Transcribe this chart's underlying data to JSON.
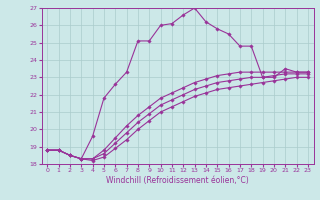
{
  "xlabel": "Windchill (Refroidissement éolien,°C)",
  "bg_color": "#cce8e8",
  "grid_color": "#aacccc",
  "line_color": "#993399",
  "xlim": [
    -0.5,
    23.5
  ],
  "ylim": [
    18,
    27
  ],
  "xticks": [
    0,
    1,
    2,
    3,
    4,
    5,
    6,
    7,
    8,
    9,
    10,
    11,
    12,
    13,
    14,
    15,
    16,
    17,
    18,
    19,
    20,
    21,
    22,
    23
  ],
  "yticks": [
    18,
    19,
    20,
    21,
    22,
    23,
    24,
    25,
    26,
    27
  ],
  "series": [
    {
      "x": [
        0,
        1,
        2,
        3,
        4,
        5,
        6,
        7,
        8,
        9,
        10,
        11,
        12,
        13,
        14,
        15,
        16,
        17,
        18,
        19,
        20,
        21,
        22,
        23
      ],
      "y": [
        18.8,
        18.8,
        18.5,
        18.3,
        19.6,
        21.8,
        22.6,
        23.3,
        25.1,
        25.1,
        26.0,
        26.1,
        26.6,
        27.0,
        26.2,
        25.8,
        25.5,
        24.8,
        24.8,
        23.0,
        23.0,
        23.5,
        23.3,
        23.3
      ]
    },
    {
      "x": [
        0,
        1,
        2,
        3,
        4,
        5,
        6,
        7,
        8,
        9,
        10,
        11,
        12,
        13,
        14,
        15,
        16,
        17,
        18,
        19,
        20,
        21,
        22,
        23
      ],
      "y": [
        18.8,
        18.8,
        18.5,
        18.3,
        18.3,
        18.8,
        19.5,
        20.2,
        20.8,
        21.3,
        21.8,
        22.1,
        22.4,
        22.7,
        22.9,
        23.1,
        23.2,
        23.3,
        23.3,
        23.3,
        23.3,
        23.3,
        23.3,
        23.3
      ]
    },
    {
      "x": [
        0,
        1,
        2,
        3,
        4,
        5,
        6,
        7,
        8,
        9,
        10,
        11,
        12,
        13,
        14,
        15,
        16,
        17,
        18,
        19,
        20,
        21,
        22,
        23
      ],
      "y": [
        18.8,
        18.8,
        18.5,
        18.3,
        18.3,
        18.6,
        19.2,
        19.8,
        20.4,
        20.9,
        21.4,
        21.7,
        22.0,
        22.3,
        22.5,
        22.7,
        22.8,
        22.9,
        23.0,
        23.0,
        23.1,
        23.2,
        23.2,
        23.2
      ]
    },
    {
      "x": [
        0,
        1,
        2,
        3,
        4,
        5,
        6,
        7,
        8,
        9,
        10,
        11,
        12,
        13,
        14,
        15,
        16,
        17,
        18,
        19,
        20,
        21,
        22,
        23
      ],
      "y": [
        18.8,
        18.8,
        18.5,
        18.3,
        18.2,
        18.4,
        18.9,
        19.4,
        20.0,
        20.5,
        21.0,
        21.3,
        21.6,
        21.9,
        22.1,
        22.3,
        22.4,
        22.5,
        22.6,
        22.7,
        22.8,
        22.9,
        23.0,
        23.0
      ]
    }
  ]
}
